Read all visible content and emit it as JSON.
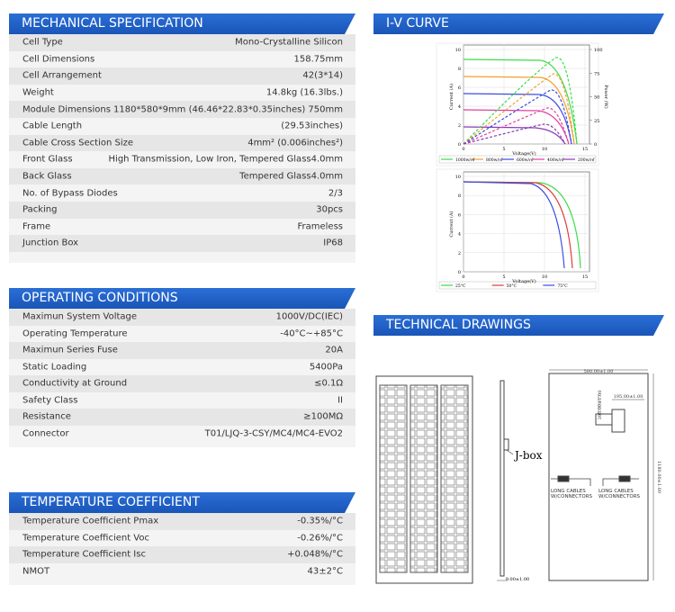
{
  "sections": [
    {
      "title": "MECHANICAL SPECIFICATION",
      "rows": [
        [
          "Cell Type",
          "Mono-Crystalline Silicon"
        ],
        [
          "Cell Dimensions",
          "158.75mm"
        ],
        [
          "Cell Arrangement",
          "42(3*14)"
        ],
        [
          "Weight",
          "14.8kg (16.3lbs.)"
        ],
        [
          "Module Dimensions",
          "1180*580*9mm (46.46*22.83*0.35inches) 750mm"
        ],
        [
          "Cable Length",
          "(29.53inches)"
        ],
        [
          "Cable Cross Section Size",
          "4mm² (0.006inches²)"
        ],
        [
          "Front Glass",
          "High Transmission, Low Iron, Tempered Glass4.0mm"
        ],
        [
          "Back Glass",
          "Tempered Glass4.0mm"
        ],
        [
          "No. of Bypass Diodes",
          "2/3"
        ],
        [
          "Packing",
          "30pcs"
        ],
        [
          "Frame",
          "Frameless"
        ],
        [
          "Junction Box",
          "IP68"
        ]
      ]
    },
    {
      "title": "OPERATING CONDITIONS",
      "rows": [
        [
          "Maximun System Voltage",
          "1000V/DC(IEC)"
        ],
        [
          "Operating Temperature",
          "-40°C~+85°C"
        ],
        [
          "Maximun Series Fuse",
          "20A"
        ],
        [
          "Static Loading",
          "5400Pa"
        ],
        [
          "Conductivity at Ground",
          "≤0.1Ω"
        ],
        [
          "Safety Class",
          "II"
        ],
        [
          "Resistance",
          "≥100MΩ"
        ],
        [
          "Connector",
          "T01/LJQ-3-CSY/MC4/MC4-EVO2"
        ]
      ]
    },
    {
      "title": "TEMPERATURE COEFFICIENT",
      "rows": [
        [
          "Temperature Coefficient Pmax",
          "-0.35%/°C"
        ],
        [
          "Temperature Coefficient Voc",
          "-0.26%/°C"
        ],
        [
          "Temperature Coefficient Isc",
          "+0.048%/°C"
        ],
        [
          "NMOT",
          "43±2°C"
        ]
      ]
    }
  ],
  "iv_curve": {
    "title": "I-V CURVE",
    "charts": [
      {
        "y_label": "Current (A)",
        "y2_label": "Power (W)",
        "x_label": "Voltage(V)",
        "xlim": [
          0,
          15
        ],
        "xticks": [
          0,
          5,
          10,
          15
        ],
        "ylim": [
          0,
          10
        ],
        "yticks": [
          0,
          2,
          4,
          6,
          8,
          10
        ],
        "y2lim": [
          0,
          100
        ],
        "y2ticks": [
          0,
          25,
          50,
          75,
          100
        ],
        "legend": [
          {
            "name": "1000w/㎡",
            "color": "#3ddc4a"
          },
          {
            "name": "800w/㎡",
            "color": "#f0a030"
          },
          {
            "name": "600w/㎡",
            "color": "#3a4ee0"
          },
          {
            "name": "400w/㎡",
            "color": "#e040a0"
          },
          {
            "name": "200w/㎡",
            "color": "#8a3ab8"
          }
        ]
      },
      {
        "y_label": "Current (A)",
        "x_label": "Voltage(V)",
        "xlim": [
          0,
          15
        ],
        "xticks": [
          0,
          5,
          10,
          15
        ],
        "ylim": [
          0,
          10
        ],
        "yticks": [
          0,
          2,
          4,
          6,
          8,
          10
        ],
        "legend": [
          {
            "name": "25°C",
            "color": "#3ddc4a"
          },
          {
            "name": "50°C",
            "color": "#e03a3a"
          },
          {
            "name": "75°C",
            "color": "#3a4ee0"
          }
        ]
      }
    ]
  },
  "technical_drawings": {
    "title": "TECHNICAL DRAWINGS",
    "jbox": "J-box",
    "width_dim": "580.00±1.00",
    "height_dim": "1180.00±1.00",
    "thickness_dim": "9.00±1.00",
    "jbox_dim_h": "195.00±1.00",
    "jbox_dim_v": "395.00±1.00",
    "cable_label_1": "LONG CABLES W/CONNECTORS",
    "cable_label_2": "LONG CABLES W/CONNECTORS"
  }
}
